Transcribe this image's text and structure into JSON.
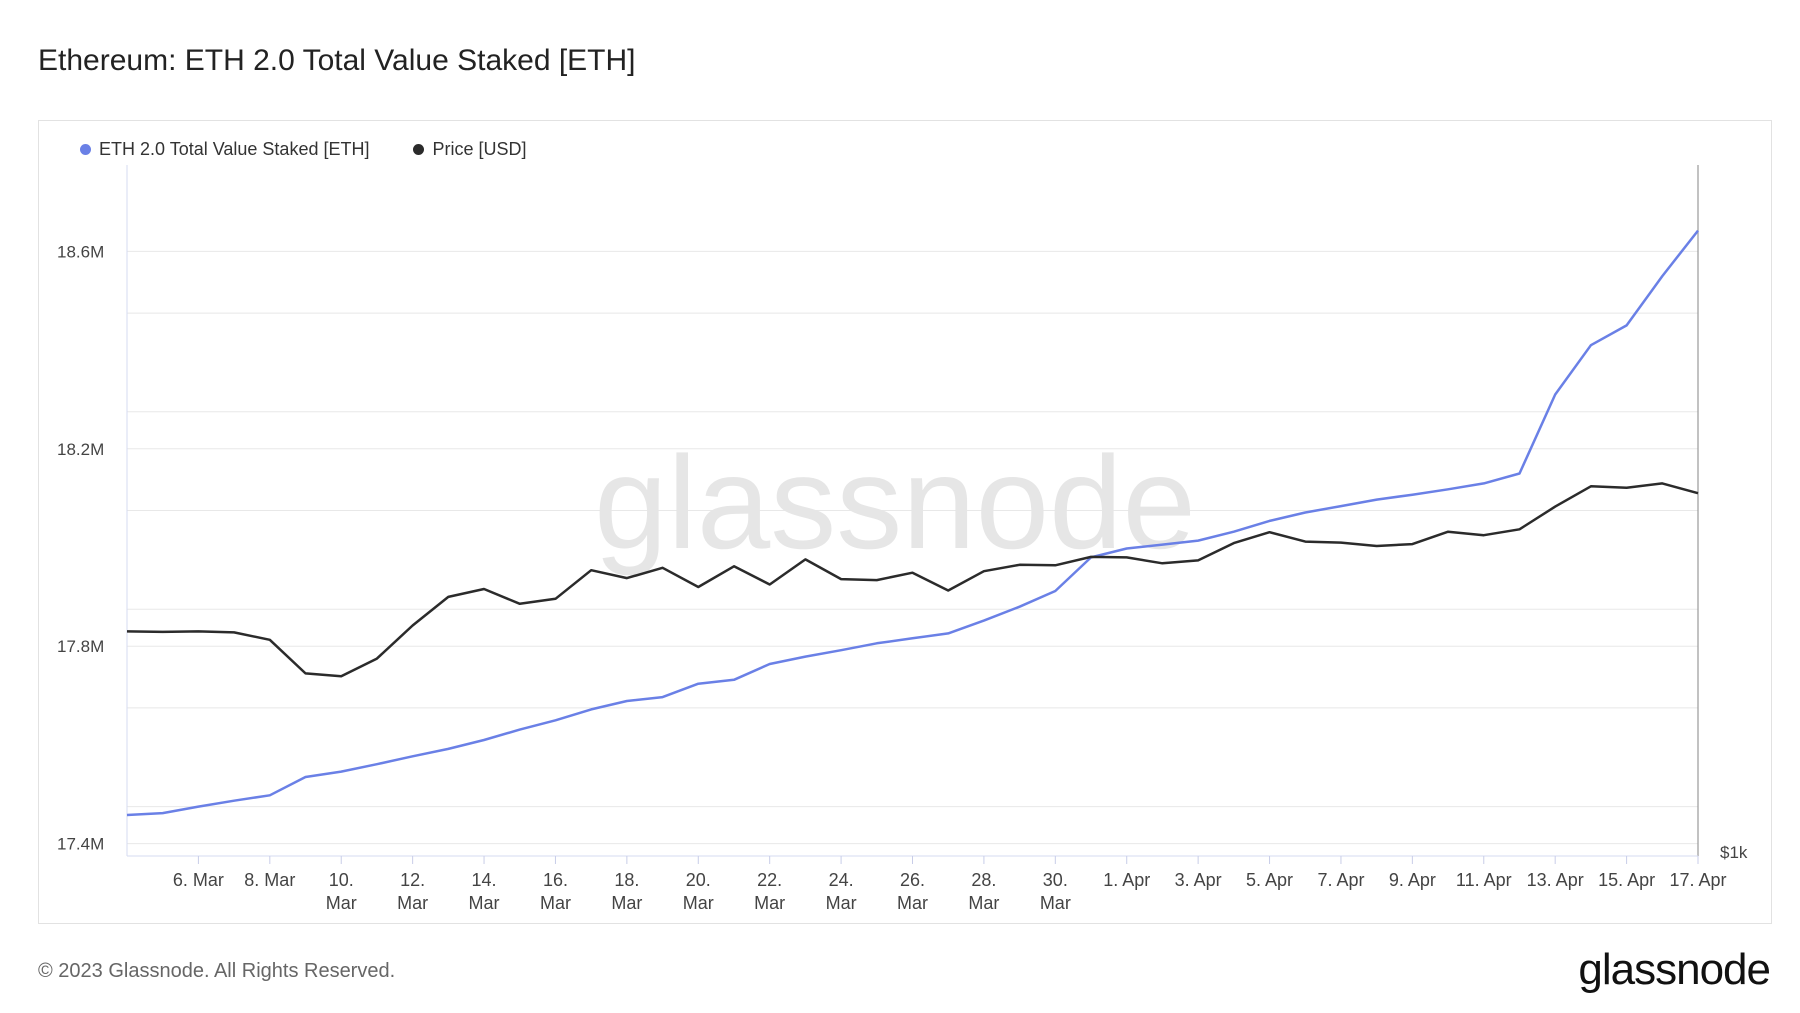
{
  "header": {
    "title": "Ethereum: ETH 2.0 Total Value Staked [ETH]"
  },
  "footer": {
    "copyright": "© 2023 Glassnode. All Rights Reserved.",
    "logo_text": "glassnode"
  },
  "watermark": "glassnode",
  "colors": {
    "staked": "#6a80e6",
    "price": "#2b2b2b",
    "grid": "#e8e8e8",
    "axis_text": "#444444"
  },
  "chart_data": {
    "type": "line",
    "title": "Ethereum: ETH 2.0 Total Value Staked [ETH]",
    "legend": [
      "ETH 2.0 Total Value Staked [ETH]",
      "Price [USD]"
    ],
    "x_labels": [
      {
        "index": 2,
        "lines": [
          "6. Mar"
        ]
      },
      {
        "index": 4,
        "lines": [
          "8. Mar"
        ]
      },
      {
        "index": 6,
        "lines": [
          "10.",
          "Mar"
        ]
      },
      {
        "index": 8,
        "lines": [
          "12.",
          "Mar"
        ]
      },
      {
        "index": 10,
        "lines": [
          "14.",
          "Mar"
        ]
      },
      {
        "index": 12,
        "lines": [
          "16.",
          "Mar"
        ]
      },
      {
        "index": 14,
        "lines": [
          "18.",
          "Mar"
        ]
      },
      {
        "index": 16,
        "lines": [
          "20.",
          "Mar"
        ]
      },
      {
        "index": 18,
        "lines": [
          "22.",
          "Mar"
        ]
      },
      {
        "index": 20,
        "lines": [
          "24.",
          "Mar"
        ]
      },
      {
        "index": 22,
        "lines": [
          "26.",
          "Mar"
        ]
      },
      {
        "index": 24,
        "lines": [
          "28.",
          "Mar"
        ]
      },
      {
        "index": 26,
        "lines": [
          "30.",
          "Mar"
        ]
      },
      {
        "index": 28,
        "lines": [
          "1. Apr"
        ]
      },
      {
        "index": 30,
        "lines": [
          "3. Apr"
        ]
      },
      {
        "index": 32,
        "lines": [
          "5. Apr"
        ]
      },
      {
        "index": 34,
        "lines": [
          "7. Apr"
        ]
      },
      {
        "index": 36,
        "lines": [
          "9. Apr"
        ]
      },
      {
        "index": 38,
        "lines": [
          "11. Apr"
        ]
      },
      {
        "index": 40,
        "lines": [
          "13. Apr"
        ]
      },
      {
        "index": 42,
        "lines": [
          "15. Apr"
        ]
      },
      {
        "index": 44,
        "lines": [
          "17. Apr"
        ]
      }
    ],
    "x_count": 45,
    "y_left": {
      "label": "",
      "ticks": [
        17.4,
        17.8,
        18.2,
        18.6
      ],
      "tick_labels": [
        "17.4M",
        "17.8M",
        "18.2M",
        "18.6M"
      ],
      "ylim": [
        17.375,
        18.775
      ]
    },
    "y_right": {
      "tick_labels": [
        "$1k"
      ],
      "grid_values": [
        1100,
        1300,
        1500,
        1700,
        1900,
        2100
      ],
      "ylim": [
        1000,
        2400
      ]
    },
    "series": [
      {
        "name": "ETH 2.0 Total Value Staked [ETH]",
        "axis": "left",
        "values": [
          17.458,
          17.462,
          17.475,
          17.487,
          17.498,
          17.535,
          17.546,
          17.561,
          17.577,
          17.592,
          17.61,
          17.631,
          17.65,
          17.672,
          17.689,
          17.697,
          17.724,
          17.732,
          17.764,
          17.779,
          17.792,
          17.806,
          17.816,
          17.826,
          17.852,
          17.88,
          17.912,
          17.98,
          17.998,
          18.006,
          18.014,
          18.032,
          18.054,
          18.071,
          18.084,
          18.097,
          18.107,
          18.118,
          18.13,
          18.15,
          18.31,
          18.41,
          18.45,
          18.55,
          18.642
        ]
      },
      {
        "name": "Price [USD]",
        "axis": "right",
        "values": [
          1455,
          1454,
          1455,
          1453,
          1438,
          1370,
          1364,
          1400,
          1467,
          1525,
          1541,
          1511,
          1521,
          1579,
          1563,
          1584,
          1545,
          1587,
          1550,
          1601,
          1561,
          1559,
          1574,
          1538,
          1577,
          1590,
          1589,
          1606,
          1605,
          1593,
          1599,
          1634,
          1656,
          1637,
          1635,
          1628,
          1632,
          1657,
          1650,
          1662,
          1708,
          1749,
          1746,
          1755,
          1735
        ]
      }
    ]
  }
}
